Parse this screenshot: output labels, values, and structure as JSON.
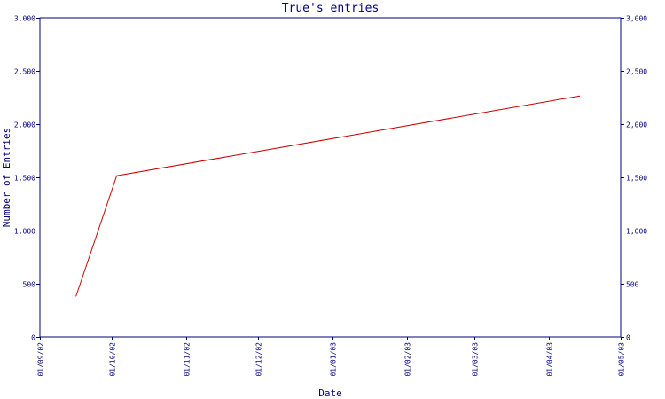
{
  "colors": {
    "axis": "#000080",
    "text": "#000080",
    "series": "#cc0000",
    "background": "#ffffff"
  },
  "chart_data": {
    "type": "line",
    "title": "True's entries",
    "xlabel": "Date",
    "ylabel": "Number of Entries",
    "grid": false,
    "legend": "none",
    "xlim": [
      "2002-09-01",
      "2003-05-01"
    ],
    "ylim": [
      0,
      3000
    ],
    "x_ticks": [
      {
        "date": "2002-09-01",
        "label": "01/09/02"
      },
      {
        "date": "2002-10-01",
        "label": "01/10/02"
      },
      {
        "date": "2002-11-01",
        "label": "01/11/02"
      },
      {
        "date": "2002-12-01",
        "label": "01/12/02"
      },
      {
        "date": "2003-01-01",
        "label": "01/01/03"
      },
      {
        "date": "2003-02-01",
        "label": "01/02/03"
      },
      {
        "date": "2003-03-01",
        "label": "01/03/03"
      },
      {
        "date": "2003-04-01",
        "label": "01/04/03"
      },
      {
        "date": "2003-05-01",
        "label": "01/05/03"
      }
    ],
    "y_ticks": [
      {
        "value": 0,
        "label": "0"
      },
      {
        "value": 500,
        "label": "500"
      },
      {
        "value": 1000,
        "label": "1,000"
      },
      {
        "value": 1500,
        "label": "1,500"
      },
      {
        "value": 2000,
        "label": "2,000"
      },
      {
        "value": 2500,
        "label": "2,500"
      },
      {
        "value": 3000,
        "label": "3,000"
      }
    ],
    "series": [
      {
        "points": [
          {
            "x": "2002-09-16",
            "y": 380
          },
          {
            "x": "2002-10-03",
            "y": 1515
          },
          {
            "x": "2003-04-14",
            "y": 2265
          }
        ]
      }
    ]
  }
}
